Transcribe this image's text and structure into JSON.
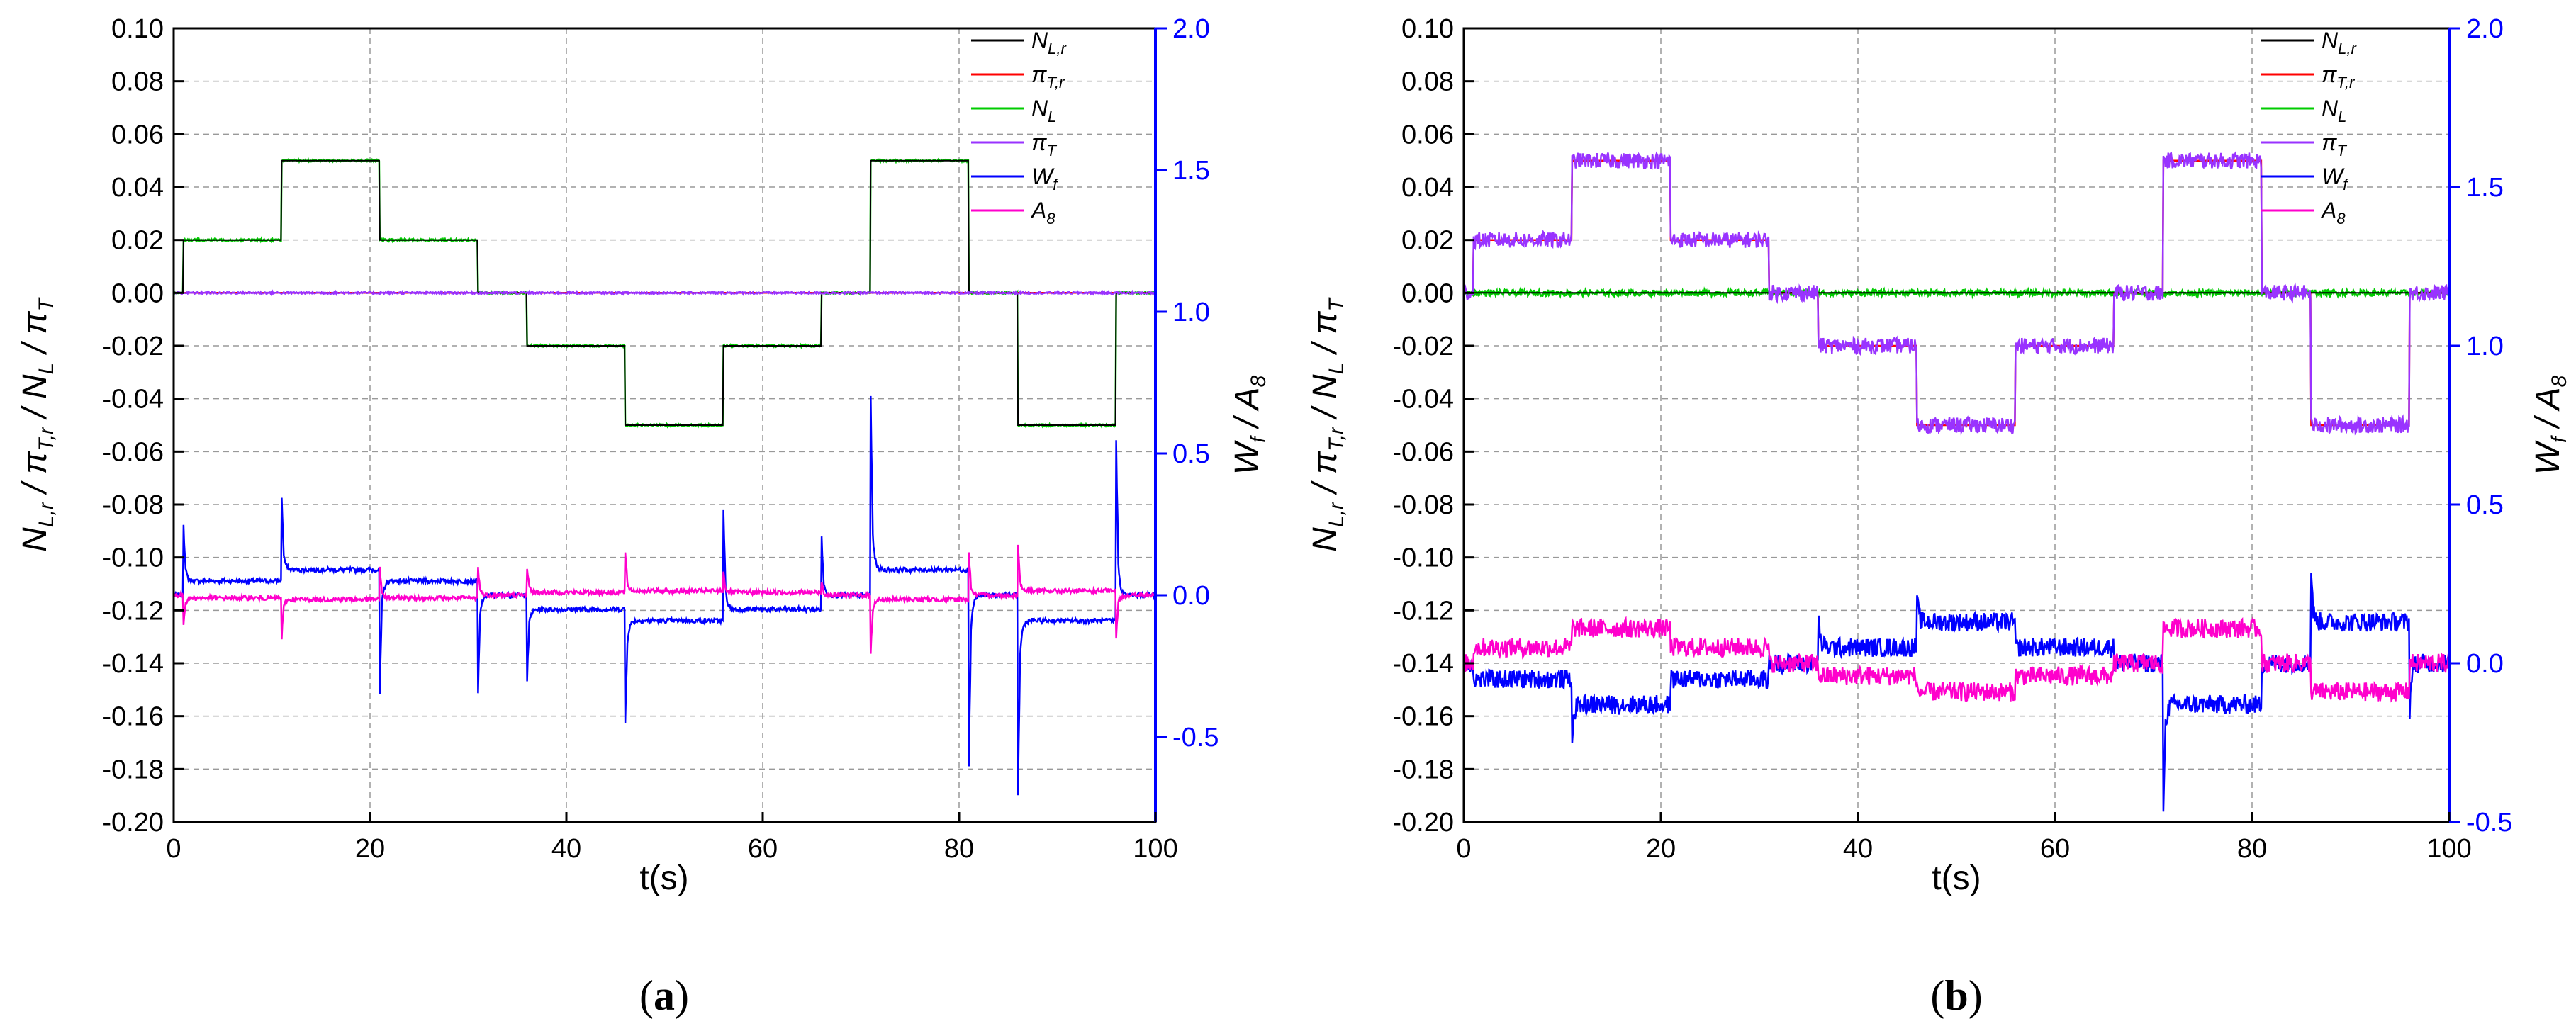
{
  "chart_data": [
    {
      "type": "line",
      "panel": "a",
      "caption_letter": "a",
      "xlabel": "t(s)",
      "ylabel_left": "N_L,r / π_T,r / N_L / π_T",
      "ylabel_right": "W_f / A_8",
      "xlim": [
        0,
        100
      ],
      "ylim_left": [
        -0.2,
        0.1
      ],
      "ylim_right": [
        -0.8,
        2.0
      ],
      "x_ticks": [
        "0",
        "20",
        "40",
        "60",
        "80",
        "100"
      ],
      "y_left_ticks": [
        "0.10",
        "0.08",
        "0.06",
        "0.04",
        "0.02",
        "0.00",
        "-0.02",
        "-0.04",
        "-0.06",
        "-0.08",
        "-0.10",
        "-0.12",
        "-0.14",
        "-0.16",
        "-0.18",
        "-0.20"
      ],
      "y_right_ticks": [
        "2.0",
        "1.5",
        "1.0",
        "0.5",
        "0.0",
        "-0.5"
      ],
      "legend": [
        "N_L,r",
        "π_T,r",
        "N_L",
        "π_T",
        "W_f",
        "A_8"
      ],
      "series": [
        {
          "name": "N_L,r",
          "color": "#000000",
          "axis": "left",
          "t": [
            0,
            1,
            11,
            21,
            31,
            36,
            46,
            56,
            66,
            71,
            81,
            86,
            96,
            100
          ],
          "v": [
            0,
            0.02,
            0.05,
            0.02,
            0,
            -0.02,
            -0.05,
            -0.02,
            0,
            0.05,
            0,
            -0.05,
            0,
            0
          ]
        },
        {
          "name": "π_T,r",
          "color": "#ff0000",
          "axis": "left",
          "t": [
            0,
            100
          ],
          "v": [
            0,
            0
          ]
        },
        {
          "name": "N_L",
          "color": "#00cc00",
          "axis": "left",
          "t": [
            0,
            1,
            11,
            21,
            31,
            36,
            46,
            56,
            66,
            71,
            81,
            86,
            96,
            100
          ],
          "v": [
            0,
            0.02,
            0.05,
            0.02,
            0,
            -0.02,
            -0.05,
            -0.02,
            0,
            0.05,
            0,
            -0.05,
            0,
            0
          ]
        },
        {
          "name": "π_T",
          "color": "#9933ff",
          "axis": "left",
          "t": [
            0,
            100
          ],
          "v": [
            0,
            0
          ]
        },
        {
          "name": "W_f",
          "color": "#0000ff",
          "axis": "right",
          "t": [
            0,
            1,
            11,
            21,
            31,
            36,
            46,
            56,
            66,
            71,
            81,
            86,
            96,
            100
          ],
          "v": [
            0,
            0.05,
            0.09,
            0.05,
            0,
            -0.05,
            -0.09,
            -0.05,
            0,
            0.09,
            0,
            -0.09,
            0,
            0
          ],
          "spikes": [
            [
              1,
              0.25
            ],
            [
              11,
              0.35
            ],
            [
              21,
              -0.35
            ],
            [
              31,
              -0.35
            ],
            [
              36,
              -0.3
            ],
            [
              46,
              -0.45
            ],
            [
              56,
              0.3
            ],
            [
              66,
              0.2
            ],
            [
              71,
              0.7
            ],
            [
              81,
              -0.6
            ],
            [
              86,
              -0.7
            ],
            [
              96,
              0.55
            ]
          ]
        },
        {
          "name": "A_8",
          "color": "#ff00cc",
          "axis": "right",
          "t": [
            0,
            1,
            11,
            21,
            31,
            36,
            46,
            56,
            66,
            71,
            81,
            86,
            96,
            100
          ],
          "v": [
            0,
            -0.01,
            -0.015,
            -0.01,
            0,
            0.01,
            0.015,
            0.01,
            0,
            -0.015,
            0,
            0.015,
            0,
            0
          ],
          "spikes": [
            [
              1,
              -0.1
            ],
            [
              11,
              -0.15
            ],
            [
              21,
              0.1
            ],
            [
              31,
              0.1
            ],
            [
              36,
              0.1
            ],
            [
              46,
              0.15
            ],
            [
              56,
              0.08
            ],
            [
              66,
              0.05
            ],
            [
              71,
              -0.2
            ],
            [
              81,
              0.15
            ],
            [
              86,
              0.18
            ],
            [
              96,
              -0.15
            ]
          ]
        }
      ]
    },
    {
      "type": "line",
      "panel": "b",
      "caption_letter": "b",
      "xlabel": "t(s)",
      "ylabel_left": "N_L,r / π_T,r / N_L / π_T",
      "ylabel_right": "W_f / A_8",
      "xlim": [
        0,
        100
      ],
      "ylim_left": [
        -0.2,
        0.1
      ],
      "ylim_right": [
        -0.5,
        2.0
      ],
      "x_ticks": [
        "0",
        "20",
        "40",
        "60",
        "80",
        "100"
      ],
      "y_left_ticks": [
        "0.10",
        "0.08",
        "0.06",
        "0.04",
        "0.02",
        "0.00",
        "-0.02",
        "-0.04",
        "-0.06",
        "-0.08",
        "-0.10",
        "-0.12",
        "-0.14",
        "-0.16",
        "-0.18",
        "-0.20"
      ],
      "y_right_ticks": [
        "2.0",
        "1.5",
        "1.0",
        "0.5",
        "0.0",
        "-0.5"
      ],
      "legend": [
        "N_L,r",
        "π_T,r",
        "N_L",
        "π_T",
        "W_f",
        "A_8"
      ],
      "series": [
        {
          "name": "N_L,r",
          "color": "#000000",
          "axis": "left",
          "t": [
            0,
            100
          ],
          "v": [
            0,
            0
          ]
        },
        {
          "name": "π_T,r",
          "color": "#ff0000",
          "axis": "left",
          "t": [
            0,
            1,
            11,
            21,
            31,
            36,
            46,
            56,
            66,
            71,
            81,
            86,
            96,
            100
          ],
          "v": [
            0,
            0.02,
            0.05,
            0.02,
            0,
            -0.02,
            -0.05,
            -0.02,
            0,
            0.05,
            0,
            -0.05,
            0,
            0
          ]
        },
        {
          "name": "N_L",
          "color": "#00cc00",
          "axis": "left",
          "t": [
            0,
            100
          ],
          "v": [
            0,
            0
          ]
        },
        {
          "name": "π_T",
          "color": "#9933ff",
          "axis": "left",
          "t": [
            0,
            1,
            11,
            21,
            31,
            36,
            46,
            56,
            66,
            71,
            81,
            86,
            96,
            100
          ],
          "v": [
            0,
            0.02,
            0.05,
            0.02,
            0,
            -0.02,
            -0.05,
            -0.02,
            0,
            0.05,
            0,
            -0.05,
            0,
            0
          ]
        },
        {
          "name": "W_f",
          "color": "#0000ff",
          "axis": "right",
          "t": [
            0,
            1,
            11,
            21,
            31,
            36,
            46,
            56,
            66,
            71,
            81,
            86,
            96,
            100
          ],
          "v": [
            0,
            -0.05,
            -0.13,
            -0.05,
            0,
            0.05,
            0.13,
            0.05,
            0,
            -0.13,
            0,
            0.13,
            0,
            0
          ],
          "spikes": [
            [
              11,
              -0.25
            ],
            [
              36,
              0.15
            ],
            [
              46,
              0.2
            ],
            [
              71,
              -0.45
            ],
            [
              86,
              0.3
            ],
            [
              96,
              -0.15
            ]
          ]
        },
        {
          "name": "A_8",
          "color": "#ff00cc",
          "axis": "right",
          "t": [
            0,
            1,
            11,
            21,
            31,
            36,
            46,
            56,
            66,
            71,
            81,
            86,
            96,
            100
          ],
          "v": [
            0,
            0.05,
            0.11,
            0.05,
            0,
            -0.04,
            -0.09,
            -0.04,
            0,
            0.11,
            0,
            -0.09,
            0,
            0
          ]
        }
      ]
    }
  ]
}
